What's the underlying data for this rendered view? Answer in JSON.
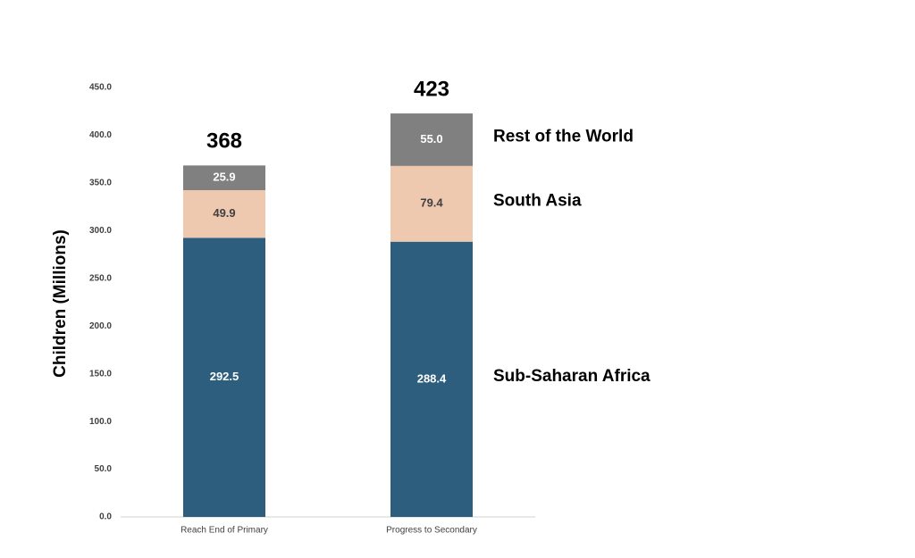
{
  "chart_data": {
    "type": "stacked-bar",
    "y_label": "Children (Millions)",
    "categories": [
      "Reach End of Primary",
      "Progress to Secondary"
    ],
    "series": [
      {
        "name": "Sub-Saharan Africa",
        "color": "#2e5e7e",
        "values": [
          292.5,
          288.4
        ]
      },
      {
        "name": "South Asia",
        "color": "#eec9b0",
        "values": [
          49.9,
          79.4
        ]
      },
      {
        "name": "Rest of the World",
        "color": "#808080",
        "values": [
          25.9,
          55.0
        ],
        "value_labels": [
          "25.9",
          "55.0"
        ]
      }
    ],
    "totals": [
      368,
      423
    ],
    "ylim": [
      0,
      450
    ],
    "yticks": [
      {
        "value": 0,
        "label": "0.0"
      },
      {
        "value": 50,
        "label": "50.0"
      },
      {
        "value": 100,
        "label": "100.0"
      },
      {
        "value": 150,
        "label": "150.0"
      },
      {
        "value": 200,
        "label": "200.0"
      },
      {
        "value": 250,
        "label": "250.0"
      },
      {
        "value": 300,
        "label": "300.0"
      },
      {
        "value": 350,
        "label": "350.0"
      },
      {
        "value": 400,
        "label": "400.0"
      },
      {
        "value": 450,
        "label": "450.0"
      }
    ]
  }
}
